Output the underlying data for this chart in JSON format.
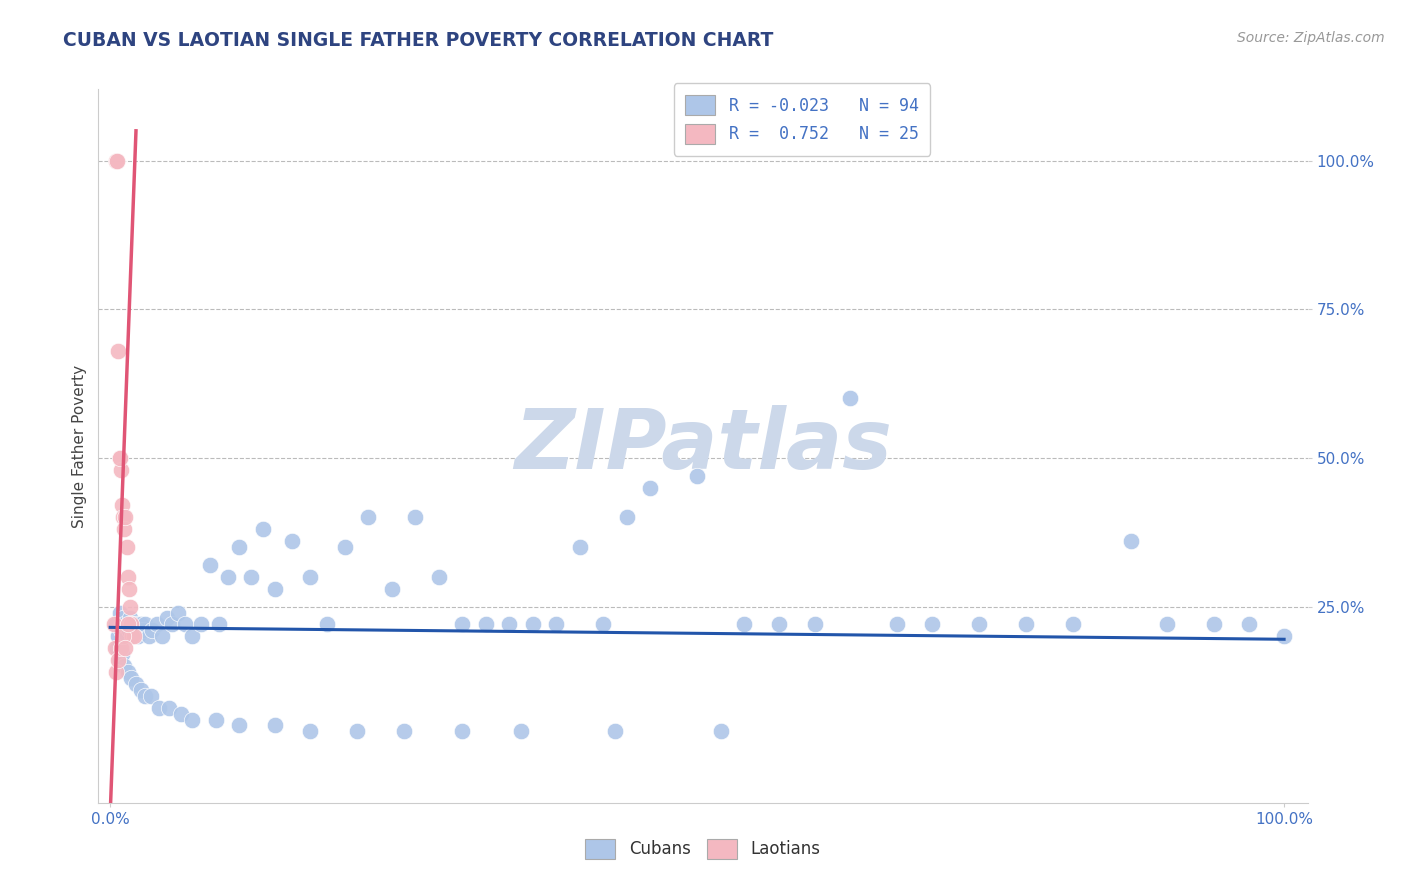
{
  "title": "CUBAN VS LAOTIAN SINGLE FATHER POVERTY CORRELATION CHART",
  "source_text": "Source: ZipAtlas.com",
  "ylabel": "Single Father Poverty",
  "watermark": "ZIPatlas",
  "xlim": [
    -0.01,
    1.02
  ],
  "ylim": [
    -0.08,
    1.12
  ],
  "x_ticks": [
    0.0,
    1.0
  ],
  "x_tick_labels": [
    "0.0%",
    "100.0%"
  ],
  "y_ticks": [
    0.25,
    0.5,
    0.75,
    1.0
  ],
  "y_tick_labels": [
    "25.0%",
    "50.0%",
    "75.0%",
    "100.0%"
  ],
  "cuban_color": "#aec6e8",
  "laotian_color": "#f4b8c1",
  "cuban_line_color": "#2255aa",
  "laotian_line_color": "#e05575",
  "background_color": "#ffffff",
  "grid_color": "#bbbbbb",
  "title_color": "#2e4480",
  "watermark_color": "#ccd8ea",
  "legend_r1": "R = -0.023   N = 94",
  "legend_r2": "R =  0.752   N = 25",
  "cuban_x": [
    0.005,
    0.007,
    0.008,
    0.009,
    0.01,
    0.011,
    0.012,
    0.013,
    0.014,
    0.015,
    0.016,
    0.017,
    0.018,
    0.019,
    0.02,
    0.021,
    0.022,
    0.024,
    0.026,
    0.028,
    0.03,
    0.033,
    0.036,
    0.04,
    0.044,
    0.048,
    0.053,
    0.058,
    0.064,
    0.07,
    0.077,
    0.085,
    0.093,
    0.1,
    0.11,
    0.12,
    0.13,
    0.14,
    0.155,
    0.17,
    0.185,
    0.2,
    0.22,
    0.24,
    0.26,
    0.28,
    0.3,
    0.32,
    0.34,
    0.36,
    0.38,
    0.4,
    0.42,
    0.44,
    0.46,
    0.5,
    0.54,
    0.57,
    0.6,
    0.63,
    0.67,
    0.7,
    0.74,
    0.78,
    0.82,
    0.87,
    0.9,
    0.94,
    0.97,
    1.0,
    0.006,
    0.008,
    0.01,
    0.012,
    0.015,
    0.018,
    0.022,
    0.026,
    0.03,
    0.035,
    0.042,
    0.05,
    0.06,
    0.07,
    0.09,
    0.11,
    0.14,
    0.17,
    0.21,
    0.25,
    0.3,
    0.35,
    0.43,
    0.52
  ],
  "cuban_y": [
    0.22,
    0.2,
    0.24,
    0.21,
    0.22,
    0.23,
    0.22,
    0.21,
    0.2,
    0.22,
    0.21,
    0.23,
    0.22,
    0.2,
    0.22,
    0.21,
    0.22,
    0.2,
    0.22,
    0.21,
    0.22,
    0.2,
    0.21,
    0.22,
    0.2,
    0.23,
    0.22,
    0.24,
    0.22,
    0.2,
    0.22,
    0.32,
    0.22,
    0.3,
    0.35,
    0.3,
    0.38,
    0.28,
    0.36,
    0.3,
    0.22,
    0.35,
    0.4,
    0.28,
    0.4,
    0.3,
    0.22,
    0.22,
    0.22,
    0.22,
    0.22,
    0.35,
    0.22,
    0.4,
    0.45,
    0.47,
    0.22,
    0.22,
    0.22,
    0.6,
    0.22,
    0.22,
    0.22,
    0.22,
    0.22,
    0.36,
    0.22,
    0.22,
    0.22,
    0.2,
    0.18,
    0.16,
    0.17,
    0.15,
    0.14,
    0.13,
    0.12,
    0.11,
    0.1,
    0.1,
    0.08,
    0.08,
    0.07,
    0.06,
    0.06,
    0.05,
    0.05,
    0.04,
    0.04,
    0.04,
    0.04,
    0.04,
    0.04,
    0.04
  ],
  "laotian_x": [
    0.003,
    0.004,
    0.005,
    0.006,
    0.007,
    0.008,
    0.009,
    0.01,
    0.011,
    0.012,
    0.013,
    0.014,
    0.015,
    0.016,
    0.017,
    0.018,
    0.019,
    0.02,
    0.005,
    0.007,
    0.009,
    0.011,
    0.013,
    0.015,
    0.008
  ],
  "laotian_y": [
    0.22,
    0.18,
    1.0,
    1.0,
    0.68,
    0.5,
    0.48,
    0.42,
    0.4,
    0.38,
    0.4,
    0.35,
    0.3,
    0.28,
    0.25,
    0.22,
    0.2,
    0.2,
    0.14,
    0.16,
    0.18,
    0.2,
    0.18,
    0.22,
    0.5
  ],
  "cuban_line_x": [
    0.0,
    1.0
  ],
  "cuban_line_y": [
    0.215,
    0.195
  ],
  "laotian_line_x": [
    0.0,
    0.022
  ],
  "laotian_line_y": [
    -0.1,
    1.05
  ]
}
